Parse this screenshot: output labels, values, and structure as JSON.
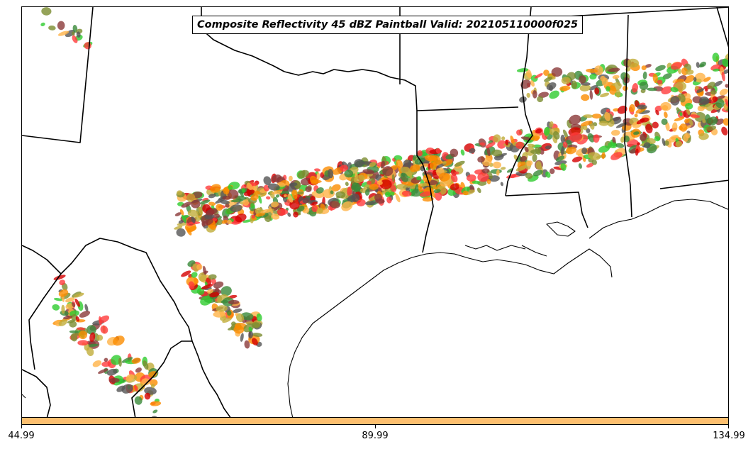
{
  "title": "Composite Reflectivity 45 dBZ Paintball Valid: 202105110000f025",
  "colors": {
    "colorbar": "#fdbf6f",
    "members": [
      "#ff3b3b",
      "#fb8c00",
      "#ffb347",
      "#c0ad3a",
      "#2ecc2e",
      "#8b3a3a",
      "#555555",
      "#d40000",
      "#7a8c30",
      "#3a8a3a"
    ]
  },
  "colorbar": {
    "ticks": [
      {
        "value": 44.99,
        "label": "44.99"
      },
      {
        "value": 89.99,
        "label": "89.99"
      },
      {
        "value": 134.99,
        "label": "134.99"
      }
    ],
    "range": [
      44.99,
      134.99
    ]
  }
}
